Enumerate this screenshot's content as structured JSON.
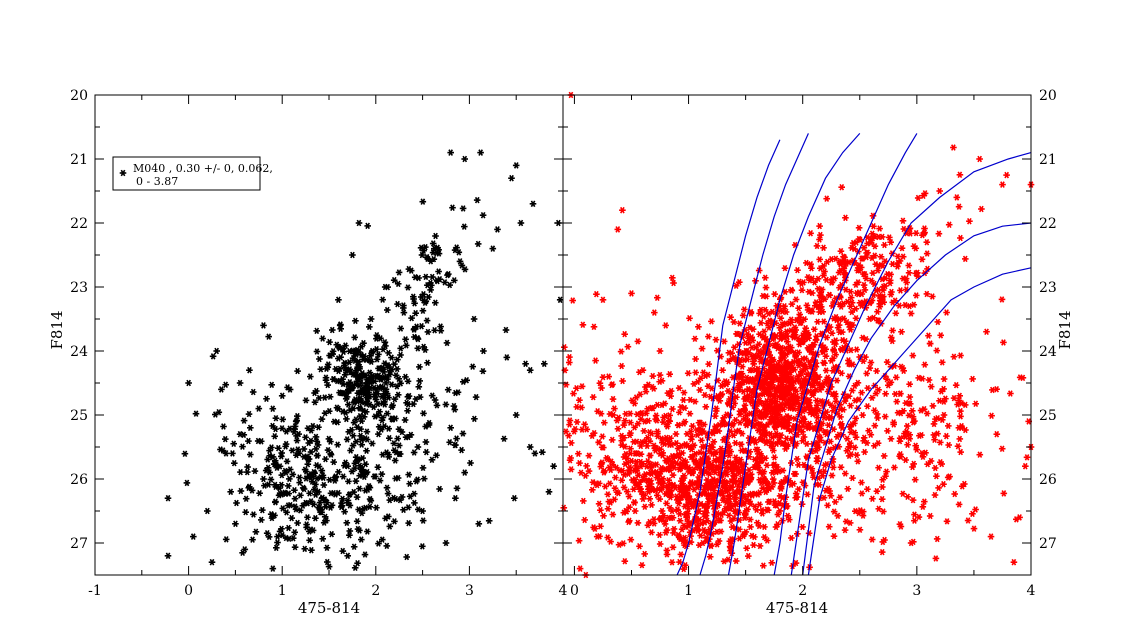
{
  "chart_data": [
    {
      "type": "scatter",
      "panel": "left",
      "xlabel": "475-814",
      "ylabel": "F814",
      "xlim": [
        -1,
        4
      ],
      "ylim": [
        27.5,
        20
      ],
      "y_inverted": true,
      "xticks": [
        "-1",
        "0",
        "1",
        "2",
        "3",
        "4"
      ],
      "yticks": [
        "20",
        "21",
        "22",
        "23",
        "24",
        "25",
        "26",
        "27"
      ],
      "ylabel_side": "left",
      "legend": {
        "placement": "top-left",
        "marker_color": "#000000",
        "lines": [
          "M040  , 0.30 +/- 0, 0.062,",
          "0 - 3.87"
        ]
      },
      "series": [
        {
          "color": "#000000",
          "marker": "asterisk",
          "count": 900,
          "points": [
            [
              -0.22,
              27.2
            ],
            [
              -0.22,
              26.3
            ],
            [
              0.0,
              24.5
            ],
            [
              0.05,
              26.9
            ],
            [
              0.2,
              26.5
            ],
            [
              0.25,
              27.3
            ],
            [
              0.3,
              24.0
            ],
            [
              0.35,
              24.6
            ],
            [
              0.4,
              25.6
            ],
            [
              0.45,
              26.2
            ],
            [
              0.5,
              26.7
            ],
            [
              0.55,
              24.5
            ],
            [
              0.55,
              25.3
            ],
            [
              0.6,
              27.1
            ],
            [
              0.65,
              24.3
            ],
            [
              0.75,
              24.9
            ],
            [
              0.8,
              26.0
            ],
            [
              0.8,
              23.6
            ],
            [
              0.9,
              27.4
            ],
            [
              0.95,
              26.9
            ],
            [
              1.0,
              24.7
            ],
            [
              1.15,
              25.1
            ],
            [
              1.3,
              24.4
            ],
            [
              1.35,
              24.8
            ],
            [
              1.6,
              23.2
            ],
            [
              1.62,
              23.6
            ],
            [
              1.7,
              27.2
            ],
            [
              1.75,
              22.5
            ],
            [
              1.82,
              22.0
            ],
            [
              1.95,
              23.5
            ],
            [
              2.1,
              23.0
            ],
            [
              2.3,
              23.4
            ],
            [
              2.45,
              25.5
            ],
            [
              2.5,
              26.5
            ],
            [
              2.6,
              25.7
            ],
            [
              2.75,
              27.0
            ],
            [
              2.8,
              25.2
            ],
            [
              2.85,
              26.3
            ],
            [
              2.9,
              22.6
            ],
            [
              2.95,
              25.9
            ],
            [
              3.05,
              23.5
            ],
            [
              3.1,
              26.7
            ],
            [
              3.15,
              24.0
            ],
            [
              3.25,
              22.4
            ],
            [
              3.3,
              22.1
            ],
            [
              3.4,
              24.1
            ],
            [
              3.45,
              21.3
            ],
            [
              3.48,
              26.3
            ],
            [
              3.5,
              21.1
            ],
            [
              3.5,
              25.0
            ],
            [
              3.55,
              22.0
            ],
            [
              3.6,
              24.2
            ],
            [
              3.65,
              24.3
            ],
            [
              3.65,
              25.5
            ],
            [
              3.68,
              21.7
            ],
            [
              3.7,
              25.6
            ],
            [
              3.8,
              24.2
            ],
            [
              3.85,
              26.2
            ],
            [
              3.9,
              25.8
            ],
            [
              3.95,
              22.0
            ],
            [
              3.97,
              23.2
            ],
            [
              2.8,
              20.9
            ],
            [
              3.12,
              20.9
            ],
            [
              2.95,
              21.0
            ]
          ]
        }
      ]
    },
    {
      "type": "scatter",
      "panel": "right",
      "xlabel": "475-814",
      "ylabel": "F814",
      "xlim": [
        -0.1,
        4
      ],
      "ylim": [
        27.5,
        20
      ],
      "y_inverted": true,
      "xticks": [
        "0",
        "1",
        "2",
        "3",
        "4"
      ],
      "yticks": [
        "20",
        "21",
        "22",
        "23",
        "24",
        "25",
        "26",
        "27"
      ],
      "ylabel_side": "right",
      "series": [
        {
          "color": "#ff0000",
          "marker": "asterisk",
          "count": 2600,
          "points": [
            [
              -0.03,
              20.0
            ],
            [
              0.05,
              27.4
            ],
            [
              0.1,
              27.5
            ],
            [
              0.2,
              26.9
            ],
            [
              0.25,
              23.2
            ],
            [
              0.3,
              24.4
            ],
            [
              0.35,
              24.9
            ],
            [
              0.38,
              22.1
            ],
            [
              0.42,
              21.8
            ],
            [
              0.45,
              26.5
            ],
            [
              0.5,
              23.1
            ],
            [
              0.55,
              25.6
            ],
            [
              0.6,
              24.3
            ],
            [
              0.65,
              26.2
            ],
            [
              0.7,
              23.4
            ],
            [
              0.75,
              24.0
            ],
            [
              0.8,
              23.6
            ],
            [
              3.55,
              21.0
            ],
            [
              3.65,
              26.9
            ],
            [
              3.7,
              25.3
            ],
            [
              3.75,
              21.4
            ],
            [
              3.85,
              27.3
            ],
            [
              3.9,
              26.6
            ],
            [
              3.95,
              25.8
            ],
            [
              3.98,
              25.1
            ],
            [
              4.0,
              25.5
            ],
            [
              4.0,
              21.4
            ],
            [
              3.2,
              21.5
            ],
            [
              3.35,
              21.6
            ],
            [
              2.95,
              27.0
            ]
          ]
        },
        {
          "color": "#0000cd",
          "type": "line",
          "points": [
            [
              0.9,
              27.5
            ],
            [
              0.95,
              27.3
            ],
            [
              1.0,
              27.0
            ],
            [
              1.05,
              26.6
            ],
            [
              1.1,
              26.2
            ],
            [
              1.15,
              25.6
            ],
            [
              1.2,
              25.0
            ],
            [
              1.25,
              24.3
            ],
            [
              1.3,
              23.6
            ],
            [
              1.4,
              22.9
            ],
            [
              1.5,
              22.2
            ],
            [
              1.6,
              21.6
            ],
            [
              1.7,
              21.1
            ],
            [
              1.8,
              20.7
            ]
          ]
        },
        {
          "color": "#0000cd",
          "type": "line",
          "points": [
            [
              1.1,
              27.5
            ],
            [
              1.15,
              27.2
            ],
            [
              1.2,
              26.8
            ],
            [
              1.25,
              26.3
            ],
            [
              1.3,
              25.8
            ],
            [
              1.35,
              25.2
            ],
            [
              1.4,
              24.5
            ],
            [
              1.45,
              23.9
            ],
            [
              1.55,
              23.2
            ],
            [
              1.65,
              22.5
            ],
            [
              1.75,
              21.9
            ],
            [
              1.85,
              21.4
            ],
            [
              1.95,
              21.0
            ],
            [
              2.05,
              20.6
            ]
          ]
        },
        {
          "color": "#0000cd",
          "type": "line",
          "points": [
            [
              1.35,
              27.5
            ],
            [
              1.4,
              27.0
            ],
            [
              1.45,
              26.4
            ],
            [
              1.5,
              25.8
            ],
            [
              1.55,
              25.2
            ],
            [
              1.6,
              24.6
            ],
            [
              1.7,
              23.9
            ],
            [
              1.8,
              23.2
            ],
            [
              1.92,
              22.5
            ],
            [
              2.05,
              21.9
            ],
            [
              2.2,
              21.3
            ],
            [
              2.35,
              20.9
            ],
            [
              2.5,
              20.6
            ]
          ]
        },
        {
          "color": "#0000cd",
          "type": "line",
          "points": [
            [
              1.75,
              27.5
            ],
            [
              1.8,
              27.0
            ],
            [
              1.85,
              26.3
            ],
            [
              1.9,
              25.7
            ],
            [
              1.95,
              25.1
            ],
            [
              2.05,
              24.5
            ],
            [
              2.15,
              23.9
            ],
            [
              2.3,
              23.2
            ],
            [
              2.45,
              22.6
            ],
            [
              2.6,
              22.0
            ],
            [
              2.75,
              21.4
            ],
            [
              2.9,
              20.9
            ],
            [
              3.0,
              20.6
            ]
          ]
        },
        {
          "color": "#0000cd",
          "type": "line",
          "points": [
            [
              1.9,
              27.5
            ],
            [
              1.95,
              26.9
            ],
            [
              2.0,
              26.3
            ],
            [
              2.05,
              25.7
            ],
            [
              2.15,
              25.1
            ],
            [
              2.25,
              24.5
            ],
            [
              2.4,
              23.9
            ],
            [
              2.55,
              23.3
            ],
            [
              2.75,
              22.6
            ],
            [
              2.95,
              22.0
            ],
            [
              3.2,
              21.6
            ],
            [
              3.5,
              21.2
            ],
            [
              3.8,
              21.0
            ],
            [
              4.0,
              20.9
            ]
          ]
        },
        {
          "color": "#0000cd",
          "type": "line",
          "points": [
            [
              2.0,
              27.5
            ],
            [
              2.05,
              26.8
            ],
            [
              2.1,
              26.1
            ],
            [
              2.2,
              25.5
            ],
            [
              2.3,
              24.9
            ],
            [
              2.45,
              24.3
            ],
            [
              2.6,
              23.8
            ],
            [
              2.8,
              23.3
            ],
            [
              3.0,
              22.9
            ],
            [
              3.25,
              22.5
            ],
            [
              3.5,
              22.2
            ],
            [
              3.75,
              22.05
            ],
            [
              4.0,
              22.0
            ]
          ]
        },
        {
          "color": "#0000cd",
          "type": "line",
          "points": [
            [
              2.05,
              27.5
            ],
            [
              2.1,
              26.9
            ],
            [
              2.15,
              26.3
            ],
            [
              2.25,
              25.7
            ],
            [
              2.4,
              25.1
            ],
            [
              2.6,
              24.6
            ],
            [
              2.85,
              24.1
            ],
            [
              3.1,
              23.6
            ],
            [
              3.3,
              23.2
            ],
            [
              3.5,
              23.0
            ],
            [
              3.75,
              22.8
            ],
            [
              4.0,
              22.7
            ]
          ]
        }
      ]
    }
  ]
}
